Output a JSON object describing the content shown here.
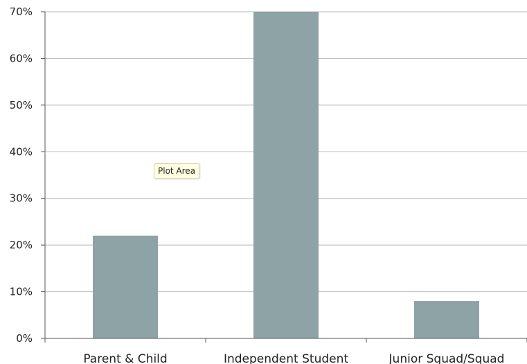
{
  "chart_data": {
    "type": "bar",
    "categories": [
      "Parent & Child",
      "Independent Student",
      "Junior Squad/Squad"
    ],
    "values": [
      22,
      70,
      8
    ],
    "ylim": [
      0,
      70
    ],
    "yticks": [
      "0%",
      "10%",
      "20%",
      "30%",
      "40%",
      "50%",
      "60%",
      "70%"
    ],
    "grid": true,
    "bar_color": "#8da3a6",
    "title": "",
    "xlabel": "",
    "ylabel": ""
  },
  "tooltip": {
    "text": "Plot Area"
  }
}
